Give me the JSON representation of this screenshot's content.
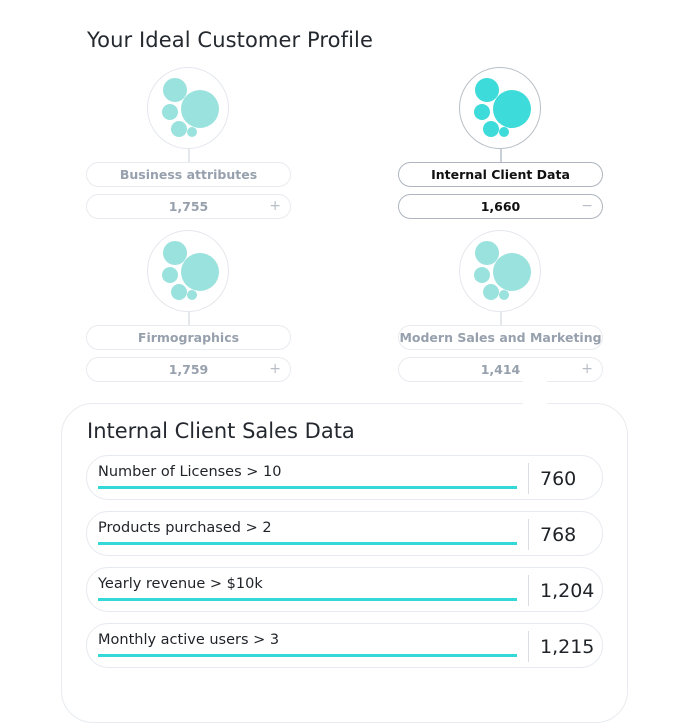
{
  "page_title": "Your Ideal Customer Profile",
  "colors": {
    "accent": "#34d8d6",
    "bubble_active": "#3ddbd9",
    "bubble_inactive": "#9ae2dd"
  },
  "segments": [
    {
      "label": "Business attributes",
      "count": "1,755",
      "toggle": "+",
      "active": false,
      "icon": "bubbles-icon"
    },
    {
      "label": "Internal Client Data",
      "count": "1,660",
      "toggle": "−",
      "active": true,
      "icon": "bubbles-icon"
    },
    {
      "label": "Firmographics",
      "count": "1,759",
      "toggle": "+",
      "active": false,
      "icon": "bubbles-icon"
    },
    {
      "label": "Modern Sales and Marketing",
      "count": "1,414",
      "toggle": "+",
      "active": false,
      "icon": "bubbles-icon"
    }
  ],
  "detail": {
    "title": "Internal Client Sales Data",
    "rows": [
      {
        "label": "Number of Licenses > 10",
        "value": "760"
      },
      {
        "label": "Products purchased > 2",
        "value": "768"
      },
      {
        "label": "Yearly revenue > $10k",
        "value": "1,204"
      },
      {
        "label": "Monthly active users > 3",
        "value": "1,215"
      }
    ]
  }
}
